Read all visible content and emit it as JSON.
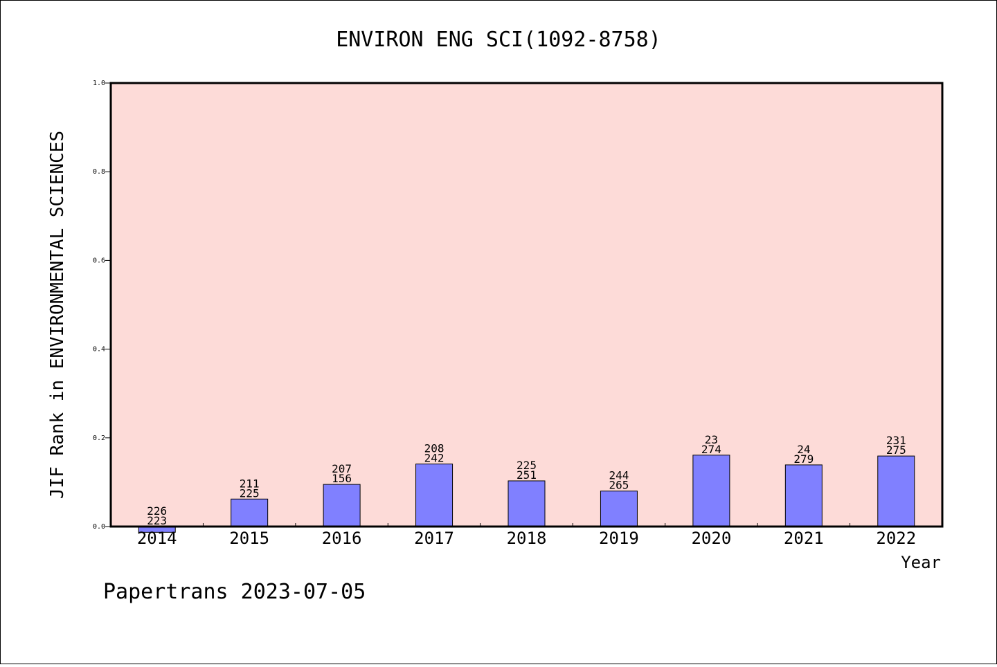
{
  "chart_data": {
    "type": "bar",
    "title": "ENVIRON ENG SCI(1092-8758)",
    "xlabel": "Year",
    "ylabel": "JIF Rank in ENVIRONMENTAL SCIENCES",
    "ylim": [
      0,
      1.0
    ],
    "yticks": [
      "0.0",
      "0.2",
      "0.4",
      "0.6",
      "0.8",
      "1.0"
    ],
    "grid": false,
    "background_color": "#fddbd8",
    "bar_color": "#8080ff",
    "categories": [
      "2014",
      "2015",
      "2016",
      "2017",
      "2018",
      "2019",
      "2020",
      "2021",
      "2022"
    ],
    "values": [
      -0.013,
      0.062,
      0.095,
      0.141,
      0.103,
      0.08,
      0.161,
      0.139,
      0.159
    ],
    "bar_labels_top": [
      "226",
      "211",
      "207",
      "208",
      "225",
      "244",
      "23",
      "24",
      "231"
    ],
    "bar_labels_bottom": [
      "223",
      "225",
      "156",
      "242",
      "251",
      "265",
      "274",
      "279",
      "275"
    ]
  },
  "footer": "Papertrans 2023-07-05"
}
